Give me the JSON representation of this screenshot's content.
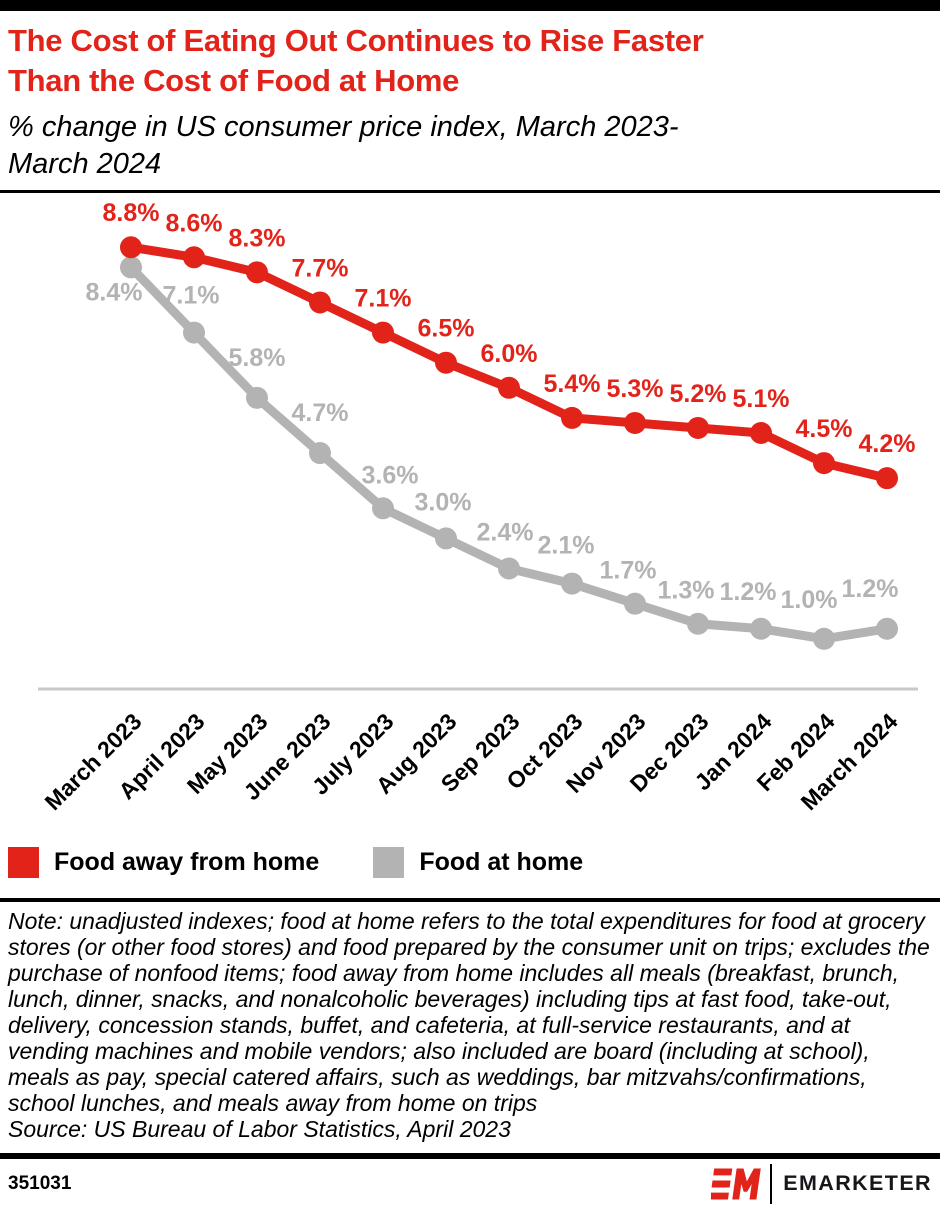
{
  "header": {
    "title_lines": [
      "The Cost of Eating Out Continues to Rise Faster",
      "Than the Cost of Food at Home"
    ],
    "subtitle_lines": [
      "% change in US consumer price index, March 2023-",
      "March 2024"
    ]
  },
  "chart_data": {
    "type": "line",
    "title": "The Cost of Eating Out Continues to Rise Faster Than the Cost of Food at Home",
    "subtitle": "% change in US consumer price index, March 2023-March 2024",
    "categories": [
      "March 2023",
      "April 2023",
      "May 2023",
      "June 2023",
      "July 2023",
      "Aug 2023",
      "Sep 2023",
      "Oct 2023",
      "Nov 2023",
      "Dec 2023",
      "Jan 2024",
      "Feb 2024",
      "March 2024"
    ],
    "series": [
      {
        "name": "Food away from home",
        "color": "#e2231a",
        "values": [
          8.8,
          8.6,
          8.3,
          7.7,
          7.1,
          6.5,
          6.0,
          5.4,
          5.3,
          5.2,
          5.1,
          4.5,
          4.2
        ]
      },
      {
        "name": "Food at home",
        "color": "#b3b3b3",
        "values": [
          8.4,
          7.1,
          5.8,
          4.7,
          3.6,
          3.0,
          2.4,
          2.1,
          1.7,
          1.3,
          1.2,
          1.0,
          1.2
        ]
      }
    ],
    "value_label_format": "{v}%",
    "ylim": [
      0,
      9.9
    ],
    "grid": false,
    "axis_line_color": "#c8c8c8",
    "legend_position": "bottom"
  },
  "legend": {
    "items": [
      {
        "label": "Food away from home",
        "color": "#e2231a"
      },
      {
        "label": "Food at home",
        "color": "#b3b3b3"
      }
    ]
  },
  "note": "Note: unadjusted indexes; food at home refers to the total expenditures for food at grocery stores (or other food stores) and food prepared by the consumer unit on trips; excludes the purchase of nonfood items; food away from home includes all meals (breakfast, brunch, lunch, dinner, snacks, and nonalcoholic beverages) including tips at fast food, take-out, delivery, concession stands, buffet, and cafeteria, at full-service restaurants, and at vending machines and mobile vendors; also included are board (including at school), meals as pay, special catered affairs, such as weddings, bar mitzvahs/confirmations, school lunches, and meals away from home on trips",
  "source": "Source: US Bureau of Labor Statistics, April 2023",
  "footer": {
    "chart_id": "351031",
    "brand": "EMARKETER",
    "logo_mark": "EM"
  },
  "colors": {
    "accent_red": "#e2231a",
    "series_gray": "#b3b3b3",
    "axis_gray": "#c8c8c8",
    "bar_black": "#000000"
  }
}
